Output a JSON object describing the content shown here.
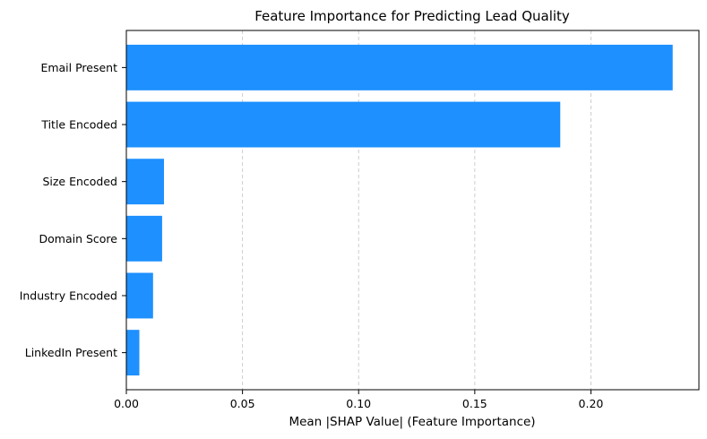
{
  "chart_data": {
    "type": "bar",
    "orientation": "horizontal",
    "title": "Feature Importance for Predicting Lead Quality",
    "xlabel": "Mean |SHAP Value| (Feature Importance)",
    "ylabel": "",
    "categories": [
      "Email Present",
      "Title Encoded",
      "Size Encoded",
      "Domain Score",
      "Industry Encoded",
      "LinkedIn Present"
    ],
    "values": [
      0.2352,
      0.1868,
      0.0162,
      0.0154,
      0.0115,
      0.0056
    ],
    "xlim": [
      0.0,
      0.2465
    ],
    "xticks": [
      0.0,
      0.05,
      0.1,
      0.15,
      0.2
    ],
    "xtick_labels": [
      "0.00",
      "0.05",
      "0.10",
      "0.15",
      "0.20"
    ],
    "grid": "x-dashed",
    "bar_color": "#1e90ff"
  }
}
